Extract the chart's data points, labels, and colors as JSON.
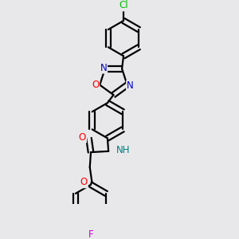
{
  "bg_color": "#e8e8eb",
  "bond_color": "#000000",
  "atom_colors": {
    "O": "#ff0000",
    "N": "#0000cc",
    "Cl": "#00bb00",
    "F": "#cc00cc",
    "H": "#008080",
    "C": "#000000"
  },
  "line_width": 1.6,
  "font_size": 8.5,
  "figsize": [
    3.0,
    3.0
  ],
  "dpi": 100
}
